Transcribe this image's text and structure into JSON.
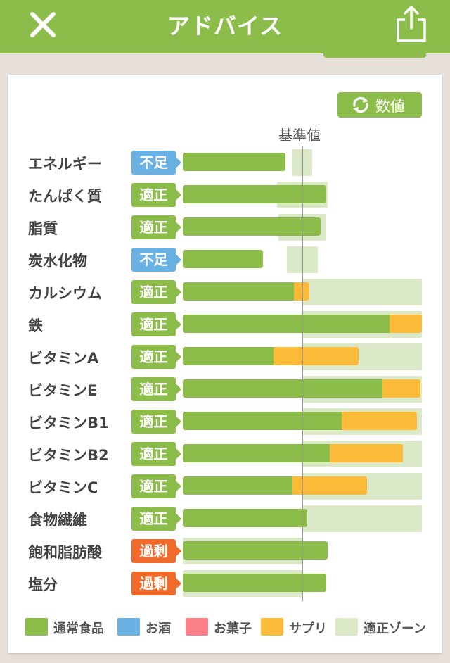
{
  "header": {
    "title": "アドバイス"
  },
  "toolbar": {
    "numeric_label": "数値"
  },
  "chart_data": {
    "type": "bar",
    "reference_label": "基準値",
    "scale": "percent of reference value (基準値 = 100)",
    "colors": {
      "normal": "#8cbd4a",
      "alcohol": "#6ab1e3",
      "sweets": "#fa7f86",
      "supplement": "#fbbb39",
      "zone": "#dce9c9",
      "shortage": "#6ab1e3",
      "adequate": "#8cbd4a",
      "excess": "#f06a2c"
    },
    "categories": [
      "エネルギー",
      "たんぱく質",
      "脂質",
      "炭水化物",
      "カルシウム",
      "鉄",
      "ビタミンA",
      "ビタミンE",
      "ビタミンB1",
      "ビタミンB2",
      "ビタミンC",
      "食物繊維",
      "飽和脂肪酸",
      "塩分"
    ],
    "rows": [
      {
        "name": "エネルギー",
        "status": "不足",
        "status_type": "shortage",
        "normal": 86,
        "supplement": 0,
        "zone": [
          92,
          108
        ]
      },
      {
        "name": "たんぱく質",
        "status": "適正",
        "status_type": "adequate",
        "normal": 120,
        "supplement": 0,
        "zone": [
          79,
          121
        ]
      },
      {
        "name": "脂質",
        "status": "適正",
        "status_type": "adequate",
        "normal": 115,
        "supplement": 0,
        "zone": [
          80,
          120
        ]
      },
      {
        "name": "炭水化物",
        "status": "不足",
        "status_type": "shortage",
        "normal": 67,
        "supplement": 0,
        "zone": [
          87,
          113
        ]
      },
      {
        "name": "カルシウム",
        "status": "適正",
        "status_type": "adequate",
        "normal": 93,
        "supplement": 13,
        "zone": [
          100,
          200
        ]
      },
      {
        "name": "鉄",
        "status": "適正",
        "status_type": "adequate",
        "normal": 173,
        "supplement": 27,
        "zone": [
          100,
          200
        ]
      },
      {
        "name": "ビタミンA",
        "status": "適正",
        "status_type": "adequate",
        "normal": 76,
        "supplement": 71,
        "zone": [
          100,
          200
        ]
      },
      {
        "name": "ビタミンE",
        "status": "適正",
        "status_type": "adequate",
        "normal": 167,
        "supplement": 32,
        "zone": [
          100,
          200
        ]
      },
      {
        "name": "ビタミンB1",
        "status": "適正",
        "status_type": "adequate",
        "normal": 133,
        "supplement": 63,
        "zone": [
          100,
          200
        ]
      },
      {
        "name": "ビタミンB2",
        "status": "適正",
        "status_type": "adequate",
        "normal": 123,
        "supplement": 61,
        "zone": [
          100,
          200
        ]
      },
      {
        "name": "ビタミンC",
        "status": "適正",
        "status_type": "adequate",
        "normal": 92,
        "supplement": 62,
        "zone": [
          100,
          200
        ]
      },
      {
        "name": "食物繊維",
        "status": "適正",
        "status_type": "adequate",
        "normal": 104,
        "supplement": 0,
        "zone": [
          100,
          200
        ]
      },
      {
        "name": "飽和脂肪酸",
        "status": "過剰",
        "status_type": "excess",
        "normal": 121,
        "supplement": 0,
        "zone": [
          0,
          100
        ]
      },
      {
        "name": "塩分",
        "status": "過剰",
        "status_type": "excess",
        "normal": 120,
        "supplement": 0,
        "zone": [
          0,
          100
        ]
      }
    ]
  },
  "legend": [
    {
      "label": "通常食品",
      "color": "#8cbd4a"
    },
    {
      "label": "お酒",
      "color": "#6ab1e3"
    },
    {
      "label": "お菓子",
      "color": "#fa7f86"
    },
    {
      "label": "サプリ",
      "color": "#fbbb39"
    },
    {
      "label": "適正ゾーン",
      "color": "#dce9c9"
    }
  ]
}
